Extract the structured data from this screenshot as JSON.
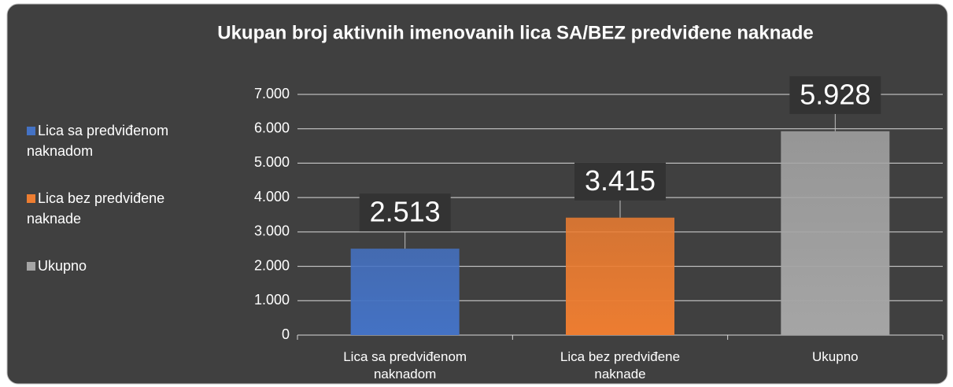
{
  "chart_data": {
    "type": "bar",
    "title": "Ukupan broj aktivnih imenovanih lica SA/BEZ  predviđene naknade",
    "categories": [
      "Lica sa predviđenom naknadom",
      "Lica bez predviđene naknade",
      "Ukupno"
    ],
    "values": [
      2513,
      3415,
      5928
    ],
    "value_labels": [
      "2.513",
      "3.415",
      "5.928"
    ],
    "colors": [
      "#4472c4",
      "#ed7d31",
      "#a5a5a5"
    ],
    "ylim": [
      0,
      7000
    ],
    "yticks": [
      0,
      {
        "value": 1000,
        "label": "1.000"
      },
      {
        "value": 2000,
        "label": "2.000"
      },
      {
        "value": 3000,
        "label": "3.000"
      },
      {
        "value": 4000,
        "label": "4.000"
      },
      {
        "value": 5000,
        "label": "5.000"
      },
      {
        "value": 6000,
        "label": "6.000"
      },
      {
        "value": 7000,
        "label": "7.000"
      }
    ],
    "grid": true,
    "legend": "left"
  }
}
